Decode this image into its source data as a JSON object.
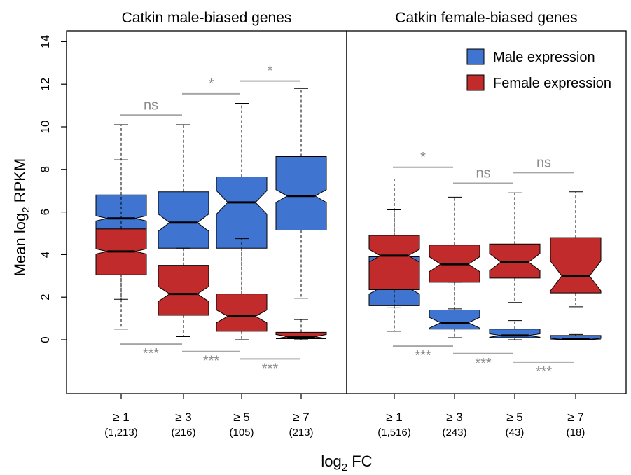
{
  "ylabel_main": "Mean log",
  "ylabel_sub": "2",
  "ylabel_tail": " RPKM",
  "xlabel_main": "log",
  "xlabel_sub": "2",
  "xlabel_tail": " FC",
  "legend": [
    {
      "label": "Male expression",
      "color": "#3f74d0"
    },
    {
      "label": "Female expression",
      "color": "#c22b2b"
    }
  ],
  "colors": {
    "male": "#3f74d0",
    "female": "#c22b2b",
    "bracket": "#a6a6a6",
    "sig_text": "#8c8c8c"
  },
  "chart_data": [
    {
      "type": "boxplot",
      "title": "Catkin male-biased genes",
      "categories": [
        "≥ 1",
        "≥ 3",
        "≥ 5",
        "≥ 7"
      ],
      "counts": [
        "(1,213)",
        "(216)",
        "(105)",
        "(213)"
      ],
      "ylim": [
        -2.5,
        14.5
      ],
      "yticks": [
        0,
        2,
        4,
        6,
        8,
        10,
        12,
        14
      ],
      "series": [
        {
          "name": "Male expression",
          "color": "#3f74d0",
          "boxes": [
            {
              "whisker_low": 1.9,
              "q1": 5.2,
              "median": 5.7,
              "q3": 6.8,
              "whisker_high": 8.45,
              "notch": 0.12
            },
            {
              "whisker_low": 2.6,
              "q1": 4.3,
              "median": 5.5,
              "q3": 6.95,
              "whisker_high": 10.1,
              "notch": 0.4
            },
            {
              "whisker_low": 0.7,
              "q1": 4.3,
              "median": 6.45,
              "q3": 7.65,
              "whisker_high": 11.1,
              "notch": 0.55
            },
            {
              "whisker_low": 1.95,
              "q1": 5.15,
              "median": 6.75,
              "q3": 8.6,
              "whisker_high": 11.8,
              "notch": 0.3
            }
          ]
        },
        {
          "name": "Female expression",
          "color": "#c22b2b",
          "boxes": [
            {
              "whisker_low": 0.5,
              "q1": 3.05,
              "median": 4.15,
              "q3": 5.2,
              "whisker_high": 10.1,
              "notch": 0.12
            },
            {
              "whisker_low": 0.15,
              "q1": 1.15,
              "median": 2.15,
              "q3": 3.5,
              "whisker_high": 4.3,
              "notch": 0.35
            },
            {
              "whisker_low": 0.0,
              "q1": 0.4,
              "median": 1.1,
              "q3": 2.15,
              "whisker_high": 4.75,
              "notch": 0.3
            },
            {
              "whisker_low": 0.0,
              "q1": 0.05,
              "median": 0.15,
              "q3": 0.35,
              "whisker_high": 0.95,
              "notch": 0.1
            }
          ]
        }
      ],
      "top_brackets": [
        {
          "label": "ns",
          "from": 0,
          "to": 1,
          "y": 10.55
        },
        {
          "label": "*",
          "from": 1,
          "to": 2,
          "y": 11.55
        },
        {
          "label": "*",
          "from": 2,
          "to": 3,
          "y": 12.15
        }
      ],
      "bottom_brackets": [
        {
          "label": "***",
          "from": 0,
          "to": 1,
          "y": -0.2
        },
        {
          "label": "***",
          "from": 1,
          "to": 2,
          "y": -0.55
        },
        {
          "label": "***",
          "from": 2,
          "to": 3,
          "y": -0.9
        }
      ]
    },
    {
      "type": "boxplot",
      "title": "Catkin female-biased genes",
      "categories": [
        "≥ 1",
        "≥ 3",
        "≥ 5",
        "≥ 7"
      ],
      "counts": [
        "(1,516)",
        "(243)",
        "(43)",
        "(18)"
      ],
      "ylim": [
        -2.5,
        14.5
      ],
      "series": [
        {
          "name": "Male expression",
          "color": "#3f74d0",
          "boxes": [
            {
              "whisker_low": 0.4,
              "q1": 1.6,
              "median": 2.45,
              "q3": 3.9,
              "whisker_high": 6.1,
              "notch": 0.3
            },
            {
              "whisker_low": 0.1,
              "q1": 0.5,
              "median": 0.8,
              "q3": 1.4,
              "whisker_high": 2.7,
              "notch": 0.25
            },
            {
              "whisker_low": 0.0,
              "q1": 0.1,
              "median": 0.2,
              "q3": 0.5,
              "whisker_high": 0.9,
              "notch": 0.08
            },
            {
              "whisker_low": 0.0,
              "q1": 0.0,
              "median": 0.02,
              "q3": 0.2,
              "whisker_high": 0.25,
              "notch": 0.04
            }
          ]
        },
        {
          "name": "Female expression",
          "color": "#c22b2b",
          "boxes": [
            {
              "whisker_low": 1.5,
              "q1": 2.35,
              "median": 3.95,
              "q3": 4.9,
              "whisker_high": 7.65,
              "notch": 0.3
            },
            {
              "whisker_low": 1.45,
              "q1": 2.7,
              "median": 3.55,
              "q3": 4.45,
              "whisker_high": 6.7,
              "notch": 0.35
            },
            {
              "whisker_low": 1.75,
              "q1": 2.9,
              "median": 3.65,
              "q3": 4.5,
              "whisker_high": 6.9,
              "notch": 0.4
            },
            {
              "whisker_low": 1.55,
              "q1": 2.2,
              "median": 3.0,
              "q3": 4.8,
              "whisker_high": 6.95,
              "notch": 0.7
            }
          ]
        }
      ],
      "top_brackets": [
        {
          "label": "*",
          "from": 0,
          "to": 1,
          "y": 8.1
        },
        {
          "label": "ns",
          "from": 1,
          "to": 2,
          "y": 7.35
        },
        {
          "label": "ns",
          "from": 2,
          "to": 3,
          "y": 7.85
        }
      ],
      "bottom_brackets": [
        {
          "label": "***",
          "from": 0,
          "to": 1,
          "y": -0.3
        },
        {
          "label": "***",
          "from": 1,
          "to": 2,
          "y": -0.65
        },
        {
          "label": "***",
          "from": 2,
          "to": 3,
          "y": -1.05
        }
      ]
    }
  ]
}
